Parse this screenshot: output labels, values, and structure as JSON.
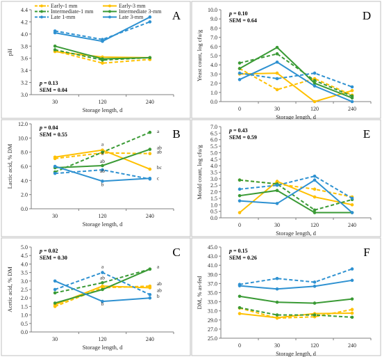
{
  "legend": [
    {
      "name": "Early-1 mm",
      "color": "#FFC000",
      "dash": true
    },
    {
      "name": "Early-3 mm",
      "color": "#FFC000",
      "dash": false
    },
    {
      "name": "Intermediate-1 mm",
      "color": "#3A9A35",
      "dash": true
    },
    {
      "name": "Intermediate 3-mm",
      "color": "#3A9A35",
      "dash": false
    },
    {
      "name": "Late 1-mm",
      "color": "#2E91D1",
      "dash": true
    },
    {
      "name": "Late 3-mm",
      "color": "#2E91D1",
      "dash": false
    }
  ],
  "chart_data": [
    {
      "panel": "A",
      "type": "line",
      "ylabel": "pH",
      "xlabel": "Storage length, d",
      "categories": [
        "30",
        "120",
        "240"
      ],
      "ylim": [
        3.0,
        4.4
      ],
      "ystep": 0.2,
      "yticks": [
        "3.0",
        "3.2",
        "3.4",
        "3.6",
        "3.8",
        "4.0",
        "4.2",
        "4.4"
      ],
      "stats": {
        "p": "0.13",
        "sem": "SEM = 0.04"
      },
      "series": [
        {
          "name": "Early-1 mm",
          "values": [
            3.72,
            3.52,
            3.58
          ]
        },
        {
          "name": "Early-3 mm",
          "values": [
            3.71,
            3.62,
            3.61
          ]
        },
        {
          "name": "Intermediate-1 mm",
          "values": [
            3.74,
            3.57,
            3.61
          ]
        },
        {
          "name": "Intermediate 3-mm",
          "values": [
            3.8,
            3.59,
            3.61
          ]
        },
        {
          "name": "Late 1-mm",
          "values": [
            4.05,
            3.91,
            4.2
          ]
        },
        {
          "name": "Late 3-mm",
          "values": [
            4.02,
            3.88,
            4.28
          ]
        }
      ],
      "annotations": []
    },
    {
      "panel": "B",
      "type": "line",
      "ylabel": "Lactic acid, % DM",
      "xlabel": "Storage length, d",
      "categories": [
        "30",
        "120",
        "240"
      ],
      "ylim": [
        0.0,
        12.0
      ],
      "ystep": 2.0,
      "yticks": [
        "0.0",
        "2.0",
        "4.0",
        "6.0",
        "8.0",
        "10.0",
        "12.0"
      ],
      "stats": {
        "p": "0.04",
        "sem": "SEM = 0.55"
      },
      "series": [
        {
          "name": "Early-1 mm",
          "values": [
            7.1,
            7.9,
            7.8
          ]
        },
        {
          "name": "Early-3 mm",
          "values": [
            7.3,
            8.3,
            5.6
          ]
        },
        {
          "name": "Intermediate-1 mm",
          "values": [
            5.2,
            8.0,
            10.8
          ]
        },
        {
          "name": "Intermediate 3-mm",
          "values": [
            5.8,
            6.1,
            8.4
          ]
        },
        {
          "name": "Late 1-mm",
          "values": [
            5.0,
            5.5,
            4.2
          ]
        },
        {
          "name": "Late 3-mm",
          "values": [
            6.0,
            3.9,
            4.3
          ]
        }
      ],
      "annotations": [
        {
          "text": "a",
          "x": "120",
          "y": 8.9
        },
        {
          "text": "a",
          "x": "120",
          "y": 7.6
        },
        {
          "text": "ab",
          "x": "120",
          "y": 6.5
        },
        {
          "text": "ab",
          "x": "120",
          "y": 5.1
        },
        {
          "text": "b",
          "x": "120",
          "y": 3.2
        },
        {
          "text": "a",
          "x": "240",
          "y": 10.7
        },
        {
          "text": "ab",
          "x": "240",
          "y": 8.4
        },
        {
          "text": "ab",
          "x": "240",
          "y": 7.8
        },
        {
          "text": "bc",
          "x": "240",
          "y": 5.6
        },
        {
          "text": "c",
          "x": "240",
          "y": 4.1
        }
      ]
    },
    {
      "panel": "C",
      "type": "line",
      "ylabel": "Acetic acid, % DM",
      "xlabel": "Storage length, d",
      "categories": [
        "30",
        "120",
        "240"
      ],
      "ylim": [
        0.0,
        5.0
      ],
      "ystep": 0.5,
      "yticks": [
        "0.0",
        "0.5",
        "1.0",
        "1.5",
        "2.0",
        "2.5",
        "3.0",
        "3.5",
        "4.0",
        "4.5",
        "5.0"
      ],
      "stats": {
        "p": "0.02",
        "sem": "SEM = 0.30"
      },
      "series": [
        {
          "name": "Early-1 mm",
          "values": [
            1.5,
            2.6,
            2.7
          ]
        },
        {
          "name": "Early-3 mm",
          "values": [
            1.6,
            2.7,
            2.6
          ]
        },
        {
          "name": "Intermediate-1 mm",
          "values": [
            2.3,
            2.9,
            3.7
          ]
        },
        {
          "name": "Intermediate 3-mm",
          "values": [
            1.7,
            2.5,
            3.7
          ]
        },
        {
          "name": "Late 1-mm",
          "values": [
            2.5,
            3.5,
            2.2
          ]
        },
        {
          "name": "Late 3-mm",
          "values": [
            3.0,
            1.8,
            2.0
          ]
        }
      ],
      "annotations": [
        {
          "text": "a",
          "x": "120",
          "y": 3.75
        },
        {
          "text": "ab",
          "x": "120",
          "y": 3.1
        },
        {
          "text": "b",
          "x": "120",
          "y": 1.55
        },
        {
          "text": "a",
          "x": "240",
          "y": 3.75
        },
        {
          "text": "ab",
          "x": "240",
          "y": 2.75
        },
        {
          "text": "ab",
          "x": "240",
          "y": 2.35
        },
        {
          "text": "b",
          "x": "240",
          "y": 2.0
        }
      ]
    },
    {
      "panel": "D",
      "type": "line",
      "ylabel": "Yeast count, log cfu/g",
      "xlabel": "Storage length, d",
      "categories": [
        "0",
        "30",
        "120",
        "240"
      ],
      "ylim": [
        0.0,
        10.0
      ],
      "ystep": 1.0,
      "yticks": [
        "0.0",
        "1.0",
        "2.0",
        "3.0",
        "4.0",
        "5.0",
        "6.0",
        "7.0",
        "8.0",
        "9.0",
        "10.0"
      ],
      "stats": {
        "p": "0.10",
        "sem": "SEM = 0.64"
      },
      "series": [
        {
          "name": "Early-1 mm",
          "values": [
            3.6,
            1.3,
            2.5,
            0.7
          ]
        },
        {
          "name": "Early-3 mm",
          "values": [
            3.0,
            3.1,
            0.0,
            1.2
          ]
        },
        {
          "name": "Intermediate-1 mm",
          "values": [
            4.2,
            5.2,
            2.3,
            0.6
          ]
        },
        {
          "name": "Intermediate 3-mm",
          "values": [
            3.6,
            5.9,
            2.0,
            0.4
          ]
        },
        {
          "name": "Late 1-mm",
          "values": [
            3.1,
            2.5,
            3.1,
            1.6
          ]
        },
        {
          "name": "Late 3-mm",
          "values": [
            2.4,
            4.3,
            1.7,
            0.0
          ]
        }
      ],
      "annotations": []
    },
    {
      "panel": "E",
      "type": "line",
      "ylabel": "Mould count, log cfu/g",
      "xlabel": "Storage length, d",
      "categories": [
        "0",
        "30",
        "120",
        "240"
      ],
      "ylim": [
        0.0,
        7.0
      ],
      "ystep": 0.5,
      "yticks": [
        "0.0",
        "0.5",
        "1.0",
        "1.5",
        "2.0",
        "2.5",
        "3.0",
        "3.5",
        "4.0",
        "4.5",
        "5.0",
        "5.5",
        "6.0",
        "6.5",
        "7.0"
      ],
      "stats": {
        "p": "0.43",
        "sem": "SEM = 0.59"
      },
      "series": [
        {
          "name": "Early-1 mm",
          "values": [
            2.9,
            2.6,
            2.2,
            1.6
          ]
        },
        {
          "name": "Early-3 mm",
          "values": [
            0.4,
            2.8,
            1.6,
            1.0
          ]
        },
        {
          "name": "Intermediate-1 mm",
          "values": [
            2.9,
            2.6,
            0.6,
            1.4
          ]
        },
        {
          "name": "Intermediate 3-mm",
          "values": [
            1.7,
            2.1,
            0.4,
            0.4
          ]
        },
        {
          "name": "Late 1-mm",
          "values": [
            2.2,
            2.5,
            3.2,
            1.5
          ]
        },
        {
          "name": "Late 3-mm",
          "values": [
            1.3,
            1.1,
            2.9,
            0.4
          ]
        }
      ],
      "annotations": []
    },
    {
      "panel": "F",
      "type": "line",
      "ylabel": "DM, % as-fed",
      "xlabel": "Storage length, d",
      "categories": [
        "0",
        "30",
        "120",
        "240"
      ],
      "ylim": [
        25.0,
        45.0
      ],
      "ystep": 2.0,
      "yticks": [
        "25.0",
        "27.0",
        "29.0",
        "31.0",
        "33.0",
        "35.0",
        "37.0",
        "39.0",
        "41.0",
        "43.0",
        "45.0"
      ],
      "stats": {
        "p": "0.15",
        "sem": "SEM = 0.26"
      },
      "series": [
        {
          "name": "Early-1 mm",
          "values": [
            31.6,
            29.4,
            29.7,
            31.3
          ]
        },
        {
          "name": "Early-3 mm",
          "values": [
            30.4,
            29.5,
            30.4,
            30.5
          ]
        },
        {
          "name": "Intermediate-1 mm",
          "values": [
            31.7,
            30.1,
            30.1,
            29.6
          ]
        },
        {
          "name": "Intermediate 3-mm",
          "values": [
            34.2,
            32.9,
            32.7,
            33.6
          ]
        },
        {
          "name": "Late 1-mm",
          "values": [
            36.8,
            38.1,
            37.3,
            40.2
          ]
        },
        {
          "name": "Late 3-mm",
          "values": [
            36.5,
            35.8,
            36.4,
            37.7
          ]
        }
      ],
      "annotations": []
    }
  ]
}
